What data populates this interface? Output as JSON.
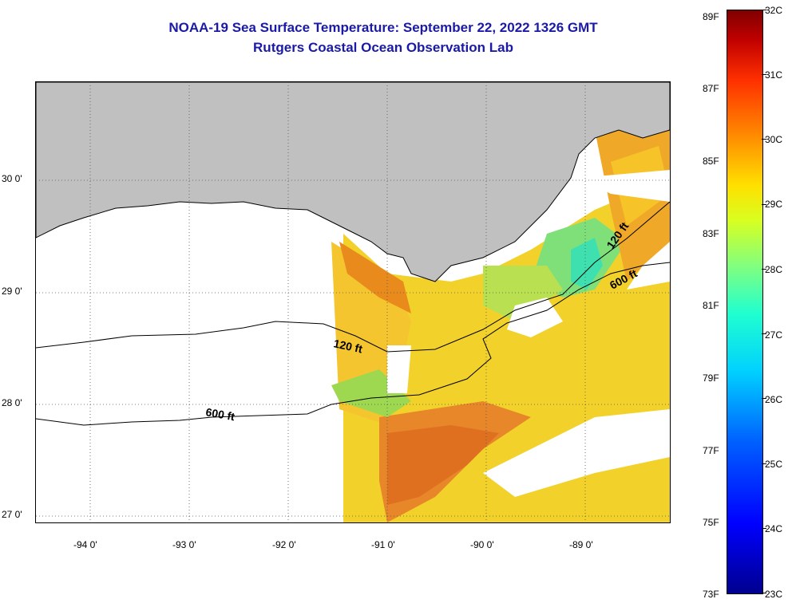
{
  "title": {
    "line1": "NOAA-19 Sea Surface Temperature:  September 22, 2022 1326 GMT",
    "line2": "Rutgers Coastal Ocean Observation Lab"
  },
  "map": {
    "region": "Northern Gulf of Mexico / Louisiana coast",
    "land_color": "#c0c0c0",
    "no_data_color": "#ffffff",
    "lon_labels": [
      "-94 0'",
      "-93 0'",
      "-92 0'",
      "-91 0'",
      "-90 0'",
      "-89 0'"
    ],
    "lat_labels": [
      "30 0'",
      "29 0'",
      "28 0'",
      "27 0'"
    ],
    "contours": [
      {
        "label": "120 ft"
      },
      {
        "label": "600 ft"
      },
      {
        "label": "120 ft"
      },
      {
        "label": "600 ft"
      }
    ]
  },
  "colorbar": {
    "fahrenheit": [
      "89F",
      "87F",
      "85F",
      "83F",
      "81F",
      "79F",
      "77F",
      "75F",
      "73F"
    ],
    "celsius": [
      "32C",
      "31C",
      "30C",
      "29C",
      "28C",
      "27C",
      "26C",
      "25C",
      "24C",
      "23C"
    ]
  }
}
